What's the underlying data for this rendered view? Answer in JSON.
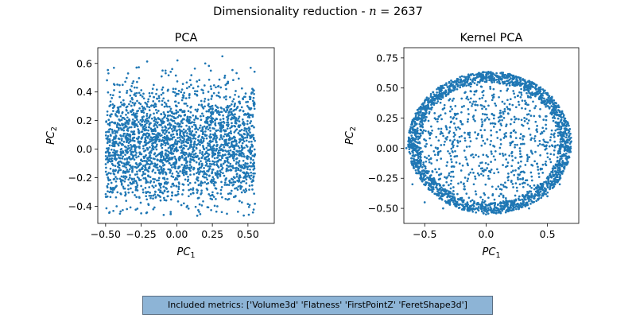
{
  "suptitle": {
    "prefix": "Dimensionality reduction - ",
    "var": "n",
    "eq": " = ",
    "value": "2637"
  },
  "footnote": "Included metrics: ['Volume3d' 'Flatness' 'FirstPointZ' 'FeretShape3d']",
  "chart_data": [
    {
      "type": "scatter",
      "title": "PCA",
      "xlabel": {
        "base": "PC",
        "sub": "1"
      },
      "ylabel": {
        "base": "PC",
        "sub": "2"
      },
      "xlim": [
        -0.555,
        0.685
      ],
      "ylim": [
        -0.52,
        0.71
      ],
      "xticks": [
        -0.5,
        -0.25,
        0.0,
        0.25,
        0.5
      ],
      "xtick_labels": [
        "−0.50",
        "−0.25",
        "0.00",
        "0.25",
        "0.50"
      ],
      "yticks": [
        -0.4,
        -0.2,
        0.0,
        0.2,
        0.4,
        0.6
      ],
      "ytick_labels": [
        "−0.4",
        "−0.2",
        "0.0",
        "0.2",
        "0.4",
        "0.6"
      ],
      "point_color": "#1f77b4",
      "n_points": 2637,
      "points": [
        [
          -0.47,
          0.05
        ],
        [
          -0.45,
          -0.3
        ],
        [
          -0.48,
          0.53
        ],
        [
          -0.4,
          0.2
        ],
        [
          -0.35,
          -0.42
        ],
        [
          -0.3,
          0.38
        ],
        [
          -0.25,
          -0.45
        ],
        [
          -0.22,
          0.1
        ],
        [
          -0.15,
          -0.3
        ],
        [
          -0.1,
          0.55
        ],
        [
          -0.05,
          -0.1
        ],
        [
          0.0,
          0.3
        ],
        [
          0.05,
          -0.38
        ],
        [
          0.1,
          0.45
        ],
        [
          0.15,
          -0.2
        ],
        [
          0.2,
          0.6
        ],
        [
          0.25,
          -0.32
        ],
        [
          0.28,
          0.05
        ],
        [
          0.32,
          0.65
        ],
        [
          0.35,
          -0.25
        ],
        [
          0.4,
          0.35
        ],
        [
          0.45,
          -0.15
        ],
        [
          0.5,
          0.25
        ],
        [
          0.53,
          -0.12
        ],
        [
          -0.43,
          -0.15
        ],
        [
          -0.38,
          0.45
        ],
        [
          -0.33,
          -0.2
        ],
        [
          -0.28,
          0.25
        ],
        [
          0.08,
          0.0
        ],
        [
          0.22,
          -0.05
        ]
      ]
    },
    {
      "type": "scatter",
      "title": "Kernel PCA",
      "xlabel": {
        "base": "PC",
        "sub": "1"
      },
      "ylabel": {
        "base": "PC",
        "sub": "2"
      },
      "xlim": [
        -0.67,
        0.755
      ],
      "ylim": [
        -0.625,
        0.835
      ],
      "xticks": [
        -0.5,
        0.0,
        0.5
      ],
      "xtick_labels": [
        "−0.5",
        "0.0",
        "0.5"
      ],
      "yticks": [
        -0.5,
        -0.25,
        0.0,
        0.25,
        0.5,
        0.75
      ],
      "ytick_labels": [
        "−0.50",
        "−0.25",
        "0.00",
        "0.25",
        "0.50",
        "0.75"
      ],
      "point_color": "#1f77b4",
      "n_points": 2637,
      "points": [
        [
          0.0,
          0.63
        ],
        [
          0.35,
          0.55
        ],
        [
          0.6,
          0.3
        ],
        [
          0.68,
          0.0
        ],
        [
          0.6,
          -0.3
        ],
        [
          0.35,
          -0.5
        ],
        [
          0.0,
          -0.55
        ],
        [
          -0.35,
          -0.5
        ],
        [
          -0.6,
          -0.3
        ],
        [
          -0.65,
          0.0
        ],
        [
          -0.55,
          0.3
        ],
        [
          -0.3,
          0.55
        ],
        [
          0.2,
          0.2
        ],
        [
          -0.2,
          0.1
        ],
        [
          0.1,
          -0.2
        ],
        [
          -0.1,
          -0.3
        ],
        [
          0.4,
          0.1
        ],
        [
          -0.4,
          -0.1
        ],
        [
          0.5,
          -0.4
        ],
        [
          -0.45,
          0.4
        ],
        [
          0.45,
          0.45
        ],
        [
          -0.5,
          -0.45
        ],
        [
          0.05,
          0.4
        ],
        [
          -0.25,
          0.35
        ],
        [
          0.3,
          -0.25
        ]
      ]
    }
  ]
}
